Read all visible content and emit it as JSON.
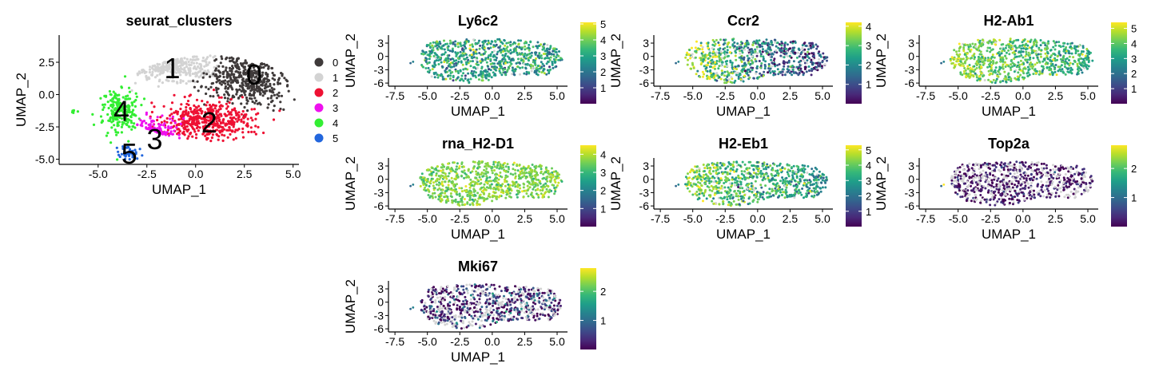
{
  "figure": {
    "type": "umap-feature-panel",
    "background": "#ffffff"
  },
  "chart_data": [
    {
      "type": "scatter",
      "title": "seurat_clusters",
      "xlabel": "UMAP_1",
      "ylabel": "UMAP_2",
      "xlim": [
        -7,
        5.3
      ],
      "ylim": [
        -5.4,
        4.6
      ],
      "xticks": [
        -5.0,
        -2.5,
        0.0,
        2.5,
        5.0
      ],
      "xtick_labels": [
        "-5.0",
        "-2.5",
        "0.0",
        "2.5",
        "5.0"
      ],
      "yticks": [
        -5.0,
        -2.5,
        0.0,
        2.5
      ],
      "ytick_labels": [
        "-5.0",
        "-2.5",
        "0.0",
        "2.5"
      ],
      "legend_placement": "right",
      "legend": [
        {
          "label": "0",
          "color": "#3f3a3a"
        },
        {
          "label": "1",
          "color": "#d3d3d3"
        },
        {
          "label": "2",
          "color": "#ee1133"
        },
        {
          "label": "3",
          "color": "#ee11ee"
        },
        {
          "label": "4",
          "color": "#33ee33"
        },
        {
          "label": "5",
          "color": "#2266dd"
        }
      ],
      "cluster_labels": [
        {
          "text": "0",
          "x": 3.0,
          "y": 1.5
        },
        {
          "text": "1",
          "x": -1.2,
          "y": 2.0
        },
        {
          "text": "2",
          "x": 0.7,
          "y": -2.2
        },
        {
          "text": "3",
          "x": -2.1,
          "y": -3.5
        },
        {
          "text": "4",
          "x": -3.8,
          "y": -1.3
        },
        {
          "text": "5",
          "x": -3.4,
          "y": -4.6
        }
      ],
      "clusters": [
        {
          "label": "0",
          "cx": 2.7,
          "cy": 1.2,
          "sx": 1.3,
          "sy": 1.4,
          "n": 500
        },
        {
          "label": "1",
          "cx": -1.2,
          "cy": 2.2,
          "sx": 1.4,
          "sy": 0.9,
          "n": 450
        },
        {
          "label": "2",
          "cx": 0.6,
          "cy": -2.0,
          "sx": 1.6,
          "sy": 1.2,
          "n": 480
        },
        {
          "label": "3",
          "cx": -2.1,
          "cy": -3.0,
          "sx": 0.8,
          "sy": 0.9,
          "n": 220
        },
        {
          "label": "4",
          "cx": -3.9,
          "cy": -1.3,
          "sx": 0.6,
          "sy": 1.3,
          "n": 220
        },
        {
          "label": "5",
          "cx": -3.4,
          "cy": -4.5,
          "sx": 0.35,
          "sy": 0.35,
          "n": 40
        }
      ]
    },
    {
      "type": "scatter",
      "title": "Ly6c2",
      "xlabel": "UMAP_1",
      "ylabel": "UMAP_2",
      "xlim": [
        -8,
        5.8
      ],
      "ylim": [
        -6.7,
        4.8
      ],
      "xticks": [
        -7.5,
        -5.0,
        -2.5,
        0.0,
        2.5,
        5.0
      ],
      "xtick_labels": [
        "-7.5",
        "-5.0",
        "-2.5",
        "0.0",
        "2.5",
        "5.0"
      ],
      "yticks": [
        -6,
        -3,
        0,
        3
      ],
      "ytick_labels": [
        "-6",
        "-3",
        "0",
        "3"
      ],
      "colorbar": {
        "min": 0,
        "max": 5.1,
        "ticks": [
          1,
          2,
          3,
          4,
          5
        ],
        "tick_labels": [
          "1",
          "2",
          "3",
          "4",
          "5"
        ],
        "colormap": "viridis"
      },
      "expression": {
        "baseline": 2.9,
        "gradient": 0.0,
        "spread": 0.8,
        "zero_fraction": 0.02
      }
    },
    {
      "type": "scatter",
      "title": "Ccr2",
      "xlabel": "UMAP_1",
      "ylabel": "UMAP_2",
      "xlim": [
        -8,
        5.8
      ],
      "ylim": [
        -6.7,
        4.8
      ],
      "xticks": [
        -7.5,
        -5.0,
        -2.5,
        0.0,
        2.5,
        5.0
      ],
      "xtick_labels": [
        "-7.5",
        "-5.0",
        "-2.5",
        "0.0",
        "2.5",
        "5.0"
      ],
      "yticks": [
        -6,
        -3,
        0,
        3
      ],
      "ytick_labels": [
        "-6",
        "-3",
        "0",
        "3"
      ],
      "colorbar": {
        "min": 0,
        "max": 4.2,
        "ticks": [
          1,
          2,
          3,
          4
        ],
        "tick_labels": [
          "1",
          "2",
          "3",
          "4"
        ],
        "colormap": "viridis"
      },
      "expression": {
        "baseline": 2.0,
        "gradient": -0.32,
        "spread": 0.9,
        "zero_fraction": 0.08
      }
    },
    {
      "type": "scatter",
      "title": "H2-Ab1",
      "xlabel": "UMAP_1",
      "ylabel": "UMAP_2",
      "xlim": [
        -8,
        5.8
      ],
      "ylim": [
        -6.7,
        4.8
      ],
      "xticks": [
        -7.5,
        -5.0,
        -2.5,
        0.0,
        2.5,
        5.0
      ],
      "xtick_labels": [
        "-7.5",
        "-5.0",
        "-2.5",
        "0.0",
        "2.5",
        "5.0"
      ],
      "yticks": [
        -6,
        -3,
        0,
        3
      ],
      "ytick_labels": [
        "-6",
        "-3",
        "0",
        "3"
      ],
      "colorbar": {
        "min": 0,
        "max": 5.4,
        "ticks": [
          1,
          2,
          3,
          4,
          5
        ],
        "tick_labels": [
          "1",
          "2",
          "3",
          "4",
          "5"
        ],
        "colormap": "viridis"
      },
      "expression": {
        "baseline": 3.9,
        "gradient": -0.12,
        "spread": 0.7,
        "zero_fraction": 0.02
      }
    },
    {
      "type": "scatter",
      "title": "rna_H2-D1",
      "xlabel": "UMAP_1",
      "ylabel": "UMAP_2",
      "xlim": [
        -8,
        5.8
      ],
      "ylim": [
        -6.7,
        4.8
      ],
      "xticks": [
        -7.5,
        -5.0,
        -2.5,
        0.0,
        2.5,
        5.0
      ],
      "xtick_labels": [
        "-7.5",
        "-5.0",
        "-2.5",
        "0.0",
        "2.5",
        "5.0"
      ],
      "yticks": [
        -6,
        -3,
        0,
        3
      ],
      "ytick_labels": [
        "-6",
        "-3",
        "0",
        "3"
      ],
      "colorbar": {
        "min": 0,
        "max": 4.5,
        "ticks": [
          1,
          2,
          3,
          4
        ],
        "tick_labels": [
          "1",
          "2",
          "3",
          "4"
        ],
        "colormap": "viridis"
      },
      "expression": {
        "baseline": 3.6,
        "gradient": 0.0,
        "spread": 0.35,
        "zero_fraction": 0.0
      }
    },
    {
      "type": "scatter",
      "title": "H2-Eb1",
      "xlabel": "UMAP_1",
      "ylabel": "UMAP_2",
      "xlim": [
        -8,
        5.8
      ],
      "ylim": [
        -6.7,
        4.8
      ],
      "xticks": [
        -7.5,
        -5.0,
        -2.5,
        0.0,
        2.5,
        5.0
      ],
      "xtick_labels": [
        "-7.5",
        "-5.0",
        "-2.5",
        "0.0",
        "2.5",
        "5.0"
      ],
      "yticks": [
        -6,
        -3,
        0,
        3
      ],
      "ytick_labels": [
        "-6",
        "-3",
        "0",
        "3"
      ],
      "colorbar": {
        "min": 0,
        "max": 5.3,
        "ticks": [
          1,
          2,
          3,
          4,
          5
        ],
        "tick_labels": [
          "1",
          "2",
          "3",
          "4",
          "5"
        ],
        "colormap": "viridis"
      },
      "expression": {
        "baseline": 3.5,
        "gradient": -0.15,
        "spread": 0.75,
        "zero_fraction": 0.03
      }
    },
    {
      "type": "scatter",
      "title": "Top2a",
      "xlabel": "UMAP_1",
      "ylabel": "UMAP_2",
      "xlim": [
        -8,
        5.8
      ],
      "ylim": [
        -6.7,
        4.8
      ],
      "xticks": [
        -7.5,
        -5.0,
        -2.5,
        0.0,
        2.5,
        5.0
      ],
      "xtick_labels": [
        "-7.5",
        "-5.0",
        "-2.5",
        "0.0",
        "2.5",
        "5.0"
      ],
      "yticks": [
        -6,
        -3,
        0,
        3
      ],
      "ytick_labels": [
        "-6",
        "-3",
        "0",
        "3"
      ],
      "colorbar": {
        "min": 0,
        "max": 2.8,
        "ticks": [
          1,
          2
        ],
        "tick_labels": [
          "1",
          "2"
        ],
        "colormap": "viridis"
      },
      "expression": {
        "baseline": 0.15,
        "gradient": 0.0,
        "spread": 0.25,
        "zero_fraction": 0.35
      }
    },
    {
      "type": "scatter",
      "title": "Mki67",
      "xlabel": "UMAP_1",
      "ylabel": "UMAP_2",
      "xlim": [
        -8,
        5.8
      ],
      "ylim": [
        -6.7,
        4.8
      ],
      "xticks": [
        -7.5,
        -5.0,
        -2.5,
        0.0,
        2.5,
        5.0
      ],
      "xtick_labels": [
        "-7.5",
        "-5.0",
        "-2.5",
        "0.0",
        "2.5",
        "5.0"
      ],
      "yticks": [
        -6,
        -3,
        0,
        3
      ],
      "ytick_labels": [
        "-6",
        "-3",
        "0",
        "3"
      ],
      "colorbar": {
        "min": 0,
        "max": 2.8,
        "ticks": [
          1,
          2
        ],
        "tick_labels": [
          "1",
          "2"
        ],
        "colormap": "viridis"
      },
      "expression": {
        "baseline": 0.35,
        "gradient": 0.0,
        "spread": 0.55,
        "zero_fraction": 0.3
      }
    }
  ]
}
